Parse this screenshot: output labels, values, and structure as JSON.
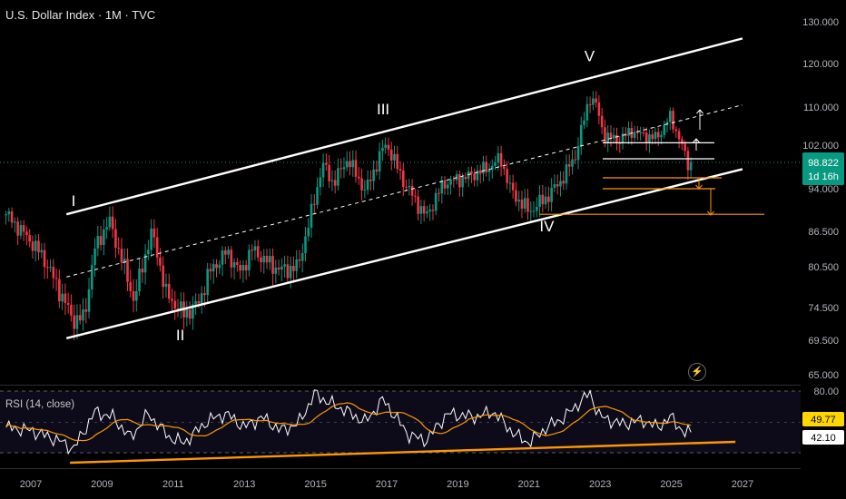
{
  "header": {
    "title": "U.S. Dollar Index · 1M · TVC"
  },
  "rsi_title": "RSI (14, close)",
  "price_badge": {
    "value": "98.822",
    "countdown": "1d 16h",
    "color": "#089981"
  },
  "rsi_badges": {
    "ma": "49.77",
    "rsi": "42.10",
    "ma_color": "#ffd600",
    "rsi_color": "#ffffff"
  },
  "wave_labels": [
    "I",
    "II",
    "III",
    "IV",
    "V"
  ],
  "sym_icon": "lightning-icon",
  "colors": {
    "up": "#089981",
    "down": "#f23645",
    "channel": "#ffffff",
    "target": "#ff9800",
    "rsi_ma": "#ff9800"
  },
  "chart_data": [
    {
      "type": "candlestick",
      "title": "U.S. Dollar Index · 1M · TVC",
      "x_ticks": [
        "2007",
        "2009",
        "2011",
        "2013",
        "2015",
        "2017",
        "2019",
        "2021",
        "2023",
        "2025",
        "2027"
      ],
      "y_ticks": [
        "130.000",
        "120.000",
        "110.000",
        "102.000",
        "94.000",
        "86.500",
        "80.500",
        "74.500",
        "69.500",
        "65.000"
      ],
      "last_price": 98.822,
      "x_range": [
        2006.3,
        2029.0
      ],
      "anchors": [
        [
          2006.3,
          89.5
        ],
        [
          2006.9,
          85.5
        ],
        [
          2007.3,
          82.5
        ],
        [
          2007.8,
          77.0
        ],
        [
          2008.2,
          72.5
        ],
        [
          2008.5,
          73.0
        ],
        [
          2008.8,
          83.5
        ],
        [
          2009.2,
          88.5
        ],
        [
          2009.4,
          84.5
        ],
        [
          2009.9,
          75.5
        ],
        [
          2010.4,
          86.5
        ],
        [
          2010.8,
          76.5
        ],
        [
          2011.3,
          73.5
        ],
        [
          2011.7,
          75.0
        ],
        [
          2012.0,
          79.5
        ],
        [
          2012.5,
          83.0
        ],
        [
          2012.9,
          79.5
        ],
        [
          2013.2,
          83.5
        ],
        [
          2013.6,
          81.5
        ],
        [
          2014.0,
          80.0
        ],
        [
          2014.5,
          80.5
        ],
        [
          2014.8,
          87.5
        ],
        [
          2015.2,
          98.5
        ],
        [
          2015.5,
          95.0
        ],
        [
          2015.9,
          99.5
        ],
        [
          2016.4,
          93.5
        ],
        [
          2016.9,
          101.5
        ],
        [
          2017.0,
          102.2
        ],
        [
          2017.5,
          95.0
        ],
        [
          2018.1,
          89.0
        ],
        [
          2018.6,
          95.0
        ],
        [
          2019.2,
          96.0
        ],
        [
          2019.9,
          98.0
        ],
        [
          2020.2,
          99.5
        ],
        [
          2020.5,
          93.5
        ],
        [
          2021.0,
          90.0
        ],
        [
          2021.5,
          92.5
        ],
        [
          2021.9,
          95.5
        ],
        [
          2022.3,
          100.0
        ],
        [
          2022.7,
          112.0
        ],
        [
          2022.85,
          111.5
        ],
        [
          2023.1,
          104.0
        ],
        [
          2023.5,
          103.0
        ],
        [
          2023.9,
          105.0
        ],
        [
          2024.2,
          104.0
        ],
        [
          2024.6,
          103.5
        ],
        [
          2024.95,
          108.0
        ],
        [
          2025.2,
          104.0
        ],
        [
          2025.45,
          98.5
        ],
        [
          2025.6,
          98.8
        ]
      ],
      "wave_points": [
        {
          "label": "I",
          "x": 2008.2,
          "y": 91.0
        },
        {
          "label": "II",
          "x": 2011.2,
          "y": 69.5
        },
        {
          "label": "III",
          "x": 2016.9,
          "y": 108.5
        },
        {
          "label": "IV",
          "x": 2021.5,
          "y": 86.5
        },
        {
          "label": "V",
          "x": 2022.7,
          "y": 120.5
        }
      ],
      "channel": {
        "lower": [
          [
            2008.0,
            69.8
          ],
          [
            2027.0,
            97.6
          ]
        ],
        "upper": [
          [
            2008.0,
            89.5
          ],
          [
            2027.0,
            126.0
          ]
        ],
        "mid": [
          [
            2008.0,
            79.0
          ],
          [
            2027.0,
            110.5
          ]
        ]
      },
      "levels_white": [
        102.5,
        99.5
      ],
      "levels_orange": [
        96.0,
        94.0,
        89.5
      ]
    },
    {
      "type": "line",
      "title": "RSI (14, close)",
      "y_ticks": [
        "80.00"
      ],
      "ylim": [
        20,
        82
      ],
      "series": [
        {
          "name": "RSI",
          "last": 42.1
        },
        {
          "name": "RSI MA",
          "last": 49.77
        }
      ],
      "rsi_anchors": [
        [
          2006.3,
          45
        ],
        [
          2007.0,
          42
        ],
        [
          2007.8,
          32
        ],
        [
          2008.2,
          24
        ],
        [
          2008.8,
          60
        ],
        [
          2009.3,
          55
        ],
        [
          2009.8,
          35
        ],
        [
          2010.3,
          58
        ],
        [
          2010.9,
          35
        ],
        [
          2011.3,
          30
        ],
        [
          2012.0,
          52
        ],
        [
          2012.5,
          58
        ],
        [
          2013.0,
          45
        ],
        [
          2013.5,
          55
        ],
        [
          2014.0,
          42
        ],
        [
          2014.5,
          48
        ],
        [
          2015.0,
          78
        ],
        [
          2015.3,
          70
        ],
        [
          2015.8,
          62
        ],
        [
          2016.4,
          50
        ],
        [
          2016.9,
          72
        ],
        [
          2017.6,
          38
        ],
        [
          2018.1,
          32
        ],
        [
          2018.7,
          58
        ],
        [
          2019.5,
          55
        ],
        [
          2020.0,
          60
        ],
        [
          2020.6,
          38
        ],
        [
          2021.0,
          30
        ],
        [
          2021.5,
          45
        ],
        [
          2022.0,
          55
        ],
        [
          2022.7,
          78
        ],
        [
          2023.0,
          55
        ],
        [
          2023.6,
          48
        ],
        [
          2024.2,
          52
        ],
        [
          2024.6,
          45
        ],
        [
          2025.0,
          55
        ],
        [
          2025.4,
          38
        ],
        [
          2025.6,
          42
        ]
      ],
      "trendline": [
        [
          2006.3,
          18
        ],
        [
          2027.0,
          39
        ]
      ]
    }
  ]
}
